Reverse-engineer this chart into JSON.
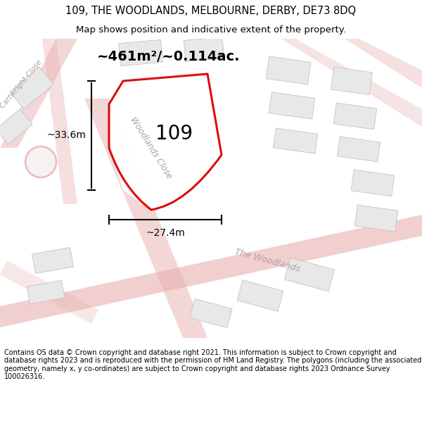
{
  "title_line1": "109, THE WOODLANDS, MELBOURNE, DERBY, DE73 8DQ",
  "title_line2": "Map shows position and indicative extent of the property.",
  "footer_text": "Contains OS data © Crown copyright and database right 2021. This information is subject to Crown copyright and database rights 2023 and is reproduced with the permission of HM Land Registry. The polygons (including the associated geometry, namely x, y co-ordinates) are subject to Crown copyright and database rights 2023 Ordnance Survey 100026316.",
  "property_label": "109",
  "area_label": "~461m²/~0.114ac.",
  "width_label": "~27.4m",
  "height_label": "~33.6m",
  "map_bg": "#f5efef",
  "plot_outline_color": "#dd0000",
  "road_label_wc": "Woodlands Close",
  "road_label_tw": "The Woodlands",
  "road_label_cc": "Cartwright Close",
  "title_fontsize": 10.5,
  "subtitle_fontsize": 9.5,
  "footer_fontsize": 7.0,
  "building_fc": "#e8e8e8",
  "building_ec": "#bbbbbb",
  "road_color": "#e8b0b0",
  "road_border": "#d09090"
}
